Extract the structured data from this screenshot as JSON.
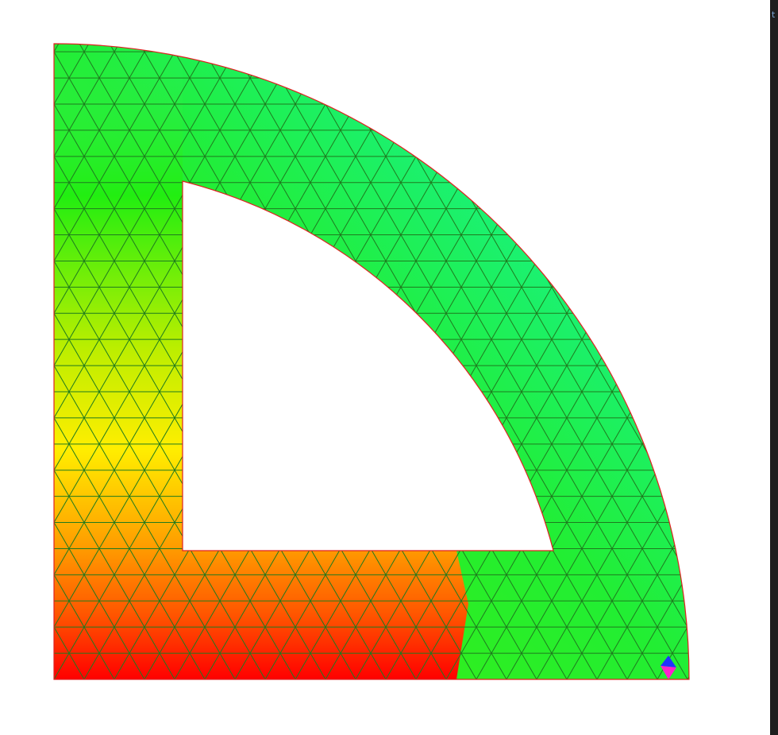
{
  "sidebar": {
    "text": "t"
  }
}
